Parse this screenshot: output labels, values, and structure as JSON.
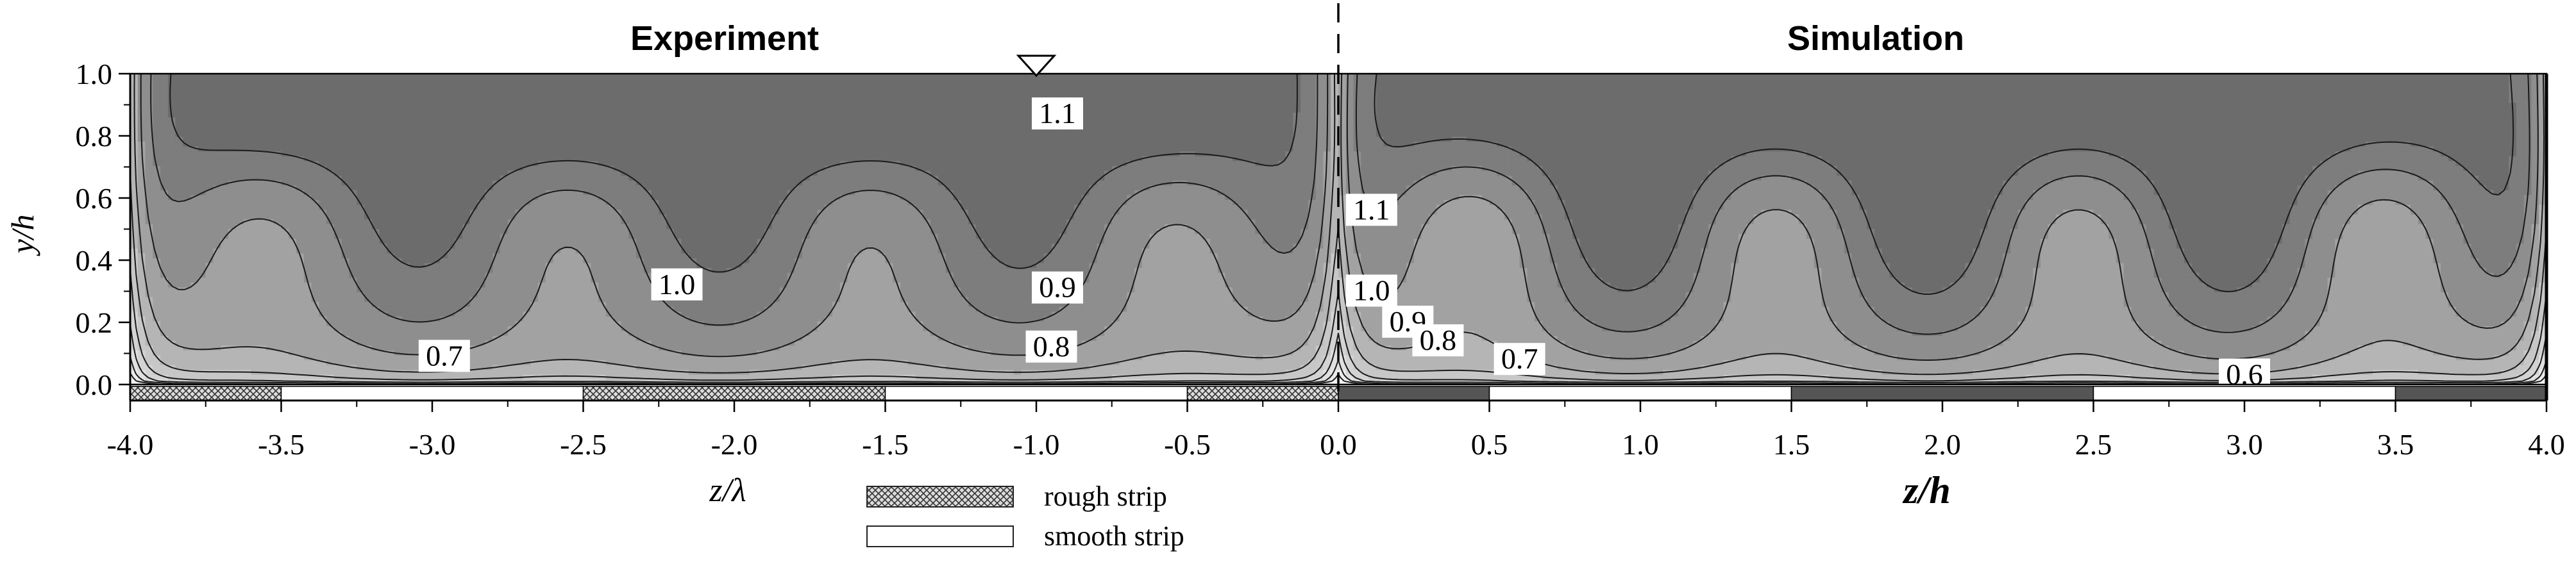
{
  "chart_data": {
    "type": "contour",
    "panels": [
      {
        "title": "Experiment",
        "xlabel": "z/λ",
        "xlim": [
          -4.0,
          0.0
        ],
        "x_ticks": [
          "-4.0",
          "-3.5",
          "-3.0",
          "-2.5",
          "-2.0",
          "-1.5",
          "-1.0",
          "-0.5",
          "0.0"
        ],
        "contour_labels": [
          {
            "text": "1.1",
            "x": -0.93,
            "y": 0.87
          },
          {
            "text": "1.0",
            "x": -2.19,
            "y": 0.32
          },
          {
            "text": "0.9",
            "x": -0.93,
            "y": 0.31
          },
          {
            "text": "0.8",
            "x": -0.95,
            "y": 0.12
          },
          {
            "text": "0.7",
            "x": -2.96,
            "y": 0.09
          }
        ]
      },
      {
        "title": "Simulation",
        "xlabel": "z/h",
        "xlim": [
          0.0,
          4.0
        ],
        "x_ticks": [
          "0.0",
          "0.5",
          "1.0",
          "1.5",
          "2.0",
          "2.5",
          "3.0",
          "3.5",
          "4.0"
        ],
        "contour_labels": [
          {
            "text": "1.1",
            "x": 0.11,
            "y": 0.56
          },
          {
            "text": "1.0",
            "x": 0.11,
            "y": 0.3
          },
          {
            "text": "0.9",
            "x": 0.23,
            "y": 0.2
          },
          {
            "text": "0.8",
            "x": 0.33,
            "y": 0.14
          },
          {
            "text": "0.7",
            "x": 0.6,
            "y": 0.08
          },
          {
            "text": "0.6",
            "x": 3.0,
            "y": 0.03
          }
        ]
      }
    ],
    "ylabel": "y/h",
    "ylim": [
      0.0,
      1.0
    ],
    "y_ticks": [
      "0.0",
      "0.2",
      "0.4",
      "0.6",
      "0.8",
      "1.0"
    ],
    "contour_levels": [
      0.3,
      0.4,
      0.5,
      0.6,
      0.7,
      0.8,
      0.9,
      1.0,
      1.1
    ],
    "strips": {
      "experiment": [
        {
          "from": -4.0,
          "to": -3.5,
          "type": "rough"
        },
        {
          "from": -3.5,
          "to": -2.5,
          "type": "smooth"
        },
        {
          "from": -2.5,
          "to": -1.5,
          "type": "rough"
        },
        {
          "from": -1.5,
          "to": -0.5,
          "type": "smooth"
        },
        {
          "from": -0.5,
          "to": 0.0,
          "type": "rough"
        }
      ],
      "simulation": [
        {
          "from": 0.0,
          "to": 0.5,
          "type": "rough"
        },
        {
          "from": 0.5,
          "to": 1.5,
          "type": "smooth"
        },
        {
          "from": 1.5,
          "to": 2.5,
          "type": "rough"
        },
        {
          "from": 2.5,
          "to": 3.5,
          "type": "smooth"
        },
        {
          "from": 3.5,
          "to": 4.0,
          "type": "rough"
        }
      ]
    },
    "legend": {
      "placement": "bottom-center",
      "items": [
        {
          "label": "rough strip",
          "pattern": "crosshatch"
        },
        {
          "label": "smooth strip",
          "pattern": "white"
        }
      ]
    },
    "marker": {
      "x": -1.0,
      "symbol": "inverted-triangle"
    },
    "colors": {
      "fill_levels": [
        "#f4f4f4",
        "#ebebeb",
        "#e0e0e0",
        "#d3d3d3",
        "#c7c7c7",
        "#b5b5b5",
        "#a2a2a2",
        "#8e8e8e",
        "#7d7d7d",
        "#6c6c6c"
      ],
      "contour_line": "#1a1a1a",
      "rough_sim": "#555555"
    }
  }
}
